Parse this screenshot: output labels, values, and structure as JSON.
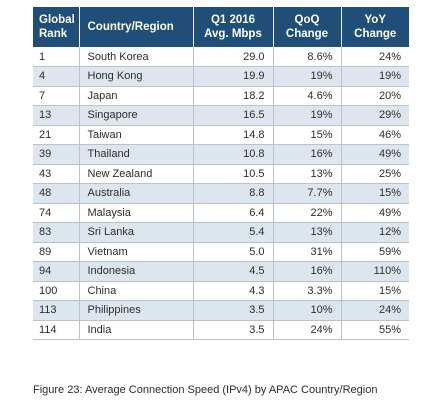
{
  "chart_data": {
    "type": "table",
    "columns": [
      "Global Rank",
      "Country/Region",
      "Q1 2016 Avg. Mbps",
      "QoQ Change",
      "YoY Change"
    ],
    "header_lines": {
      "rank": [
        "Global",
        "Rank"
      ],
      "country": [
        "Country/Region"
      ],
      "mbps": [
        "Q1 2016",
        "Avg. Mbps"
      ],
      "qoq": [
        "QoQ",
        "Change"
      ],
      "yoy": [
        "YoY",
        "Change"
      ]
    },
    "rows": [
      {
        "rank": "1",
        "country": "South Korea",
        "mbps": "29.0",
        "qoq": "8.6%",
        "yoy": "24%"
      },
      {
        "rank": "4",
        "country": "Hong Kong",
        "mbps": "19.9",
        "qoq": "19%",
        "yoy": "19%"
      },
      {
        "rank": "7",
        "country": "Japan",
        "mbps": "18.2",
        "qoq": "4.6%",
        "yoy": "20%"
      },
      {
        "rank": "13",
        "country": "Singapore",
        "mbps": "16.5",
        "qoq": "19%",
        "yoy": "29%"
      },
      {
        "rank": "21",
        "country": "Taiwan",
        "mbps": "14.8",
        "qoq": "15%",
        "yoy": "46%"
      },
      {
        "rank": "39",
        "country": "Thailand",
        "mbps": "10.8",
        "qoq": "16%",
        "yoy": "49%"
      },
      {
        "rank": "43",
        "country": "New Zealand",
        "mbps": "10.5",
        "qoq": "13%",
        "yoy": "25%"
      },
      {
        "rank": "48",
        "country": "Australia",
        "mbps": "8.8",
        "qoq": "7.7%",
        "yoy": "15%"
      },
      {
        "rank": "74",
        "country": "Malaysia",
        "mbps": "6.4",
        "qoq": "22%",
        "yoy": "49%"
      },
      {
        "rank": "83",
        "country": "Sri Lanka",
        "mbps": "5.4",
        "qoq": "13%",
        "yoy": "12%"
      },
      {
        "rank": "89",
        "country": "Vietnam",
        "mbps": "5.0",
        "qoq": "31%",
        "yoy": "59%"
      },
      {
        "rank": "94",
        "country": "Indonesia",
        "mbps": "4.5",
        "qoq": "16%",
        "yoy": "110%"
      },
      {
        "rank": "100",
        "country": "China",
        "mbps": "4.3",
        "qoq": "3.3%",
        "yoy": "15%"
      },
      {
        "rank": "113",
        "country": "Philippines",
        "mbps": "3.5",
        "qoq": "10%",
        "yoy": "24%"
      },
      {
        "rank": "114",
        "country": "India",
        "mbps": "3.5",
        "qoq": "24%",
        "yoy": "55%"
      }
    ],
    "caption": "Figure 23: Average Connection Speed (IPv4) by APAC Country/Region"
  },
  "colors": {
    "header_bg": "#1f4e79",
    "header_text": "#ffffff",
    "alt_row_bg": "#dde6ef",
    "row_bg": "#ffffff",
    "grid_line": "#b9c3cd",
    "text": "#2e2e2e"
  }
}
